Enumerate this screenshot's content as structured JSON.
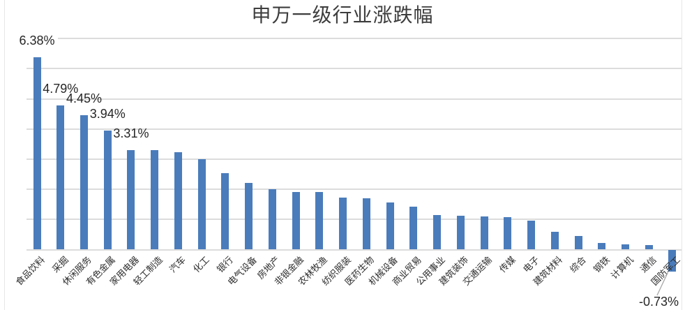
{
  "chart_data": {
    "type": "bar",
    "title": "申万一级行业涨跌幅",
    "unit": "%",
    "categories": [
      "食品饮料",
      "采掘",
      "休闲服务",
      "有色金属",
      "家用电器",
      "轻工制造",
      "汽车",
      "化工",
      "银行",
      "电气设备",
      "房地产",
      "非银金融",
      "农林牧渔",
      "纺织服装",
      "医药生物",
      "机械设备",
      "商业贸易",
      "公用事业",
      "建筑装饰",
      "交通运输",
      "传媒",
      "电子",
      "建筑材料",
      "综合",
      "钢铁",
      "计算机",
      "通信",
      "国防军工"
    ],
    "values": [
      6.38,
      4.79,
      4.45,
      3.94,
      3.31,
      3.29,
      3.23,
      3.0,
      2.53,
      2.21,
      2.0,
      1.91,
      1.9,
      1.72,
      1.7,
      1.56,
      1.43,
      1.15,
      1.13,
      1.11,
      1.07,
      0.95,
      0.58,
      0.46,
      0.21,
      0.18,
      0.15,
      -0.73
    ],
    "data_labels": [
      {
        "index": 0,
        "text": "6.38%"
      },
      {
        "index": 1,
        "text": "4.79%"
      },
      {
        "index": 2,
        "text": "4.45%"
      },
      {
        "index": 3,
        "text": "3.94%"
      },
      {
        "index": 4,
        "text": "3.31%"
      },
      {
        "index": 27,
        "text": "-0.73%",
        "leader_line": true
      }
    ],
    "ylim": [
      -1,
      7
    ],
    "gridlines": {
      "orientation": "horizontal",
      "step_pct": 1,
      "from_pct": 0,
      "to_pct": 7,
      "y_axis_labels_shown": false
    },
    "legend": "none",
    "xlabel_rotation_deg": 45,
    "colors": {
      "bar": "#4A7CBB",
      "gridline": "#DCDCDC",
      "title_text": "#3D3D3D",
      "data_label_text": "#262626",
      "axis_label_text": "#2E2E2E",
      "leader_line": "#A8A8A8",
      "background": "#FFFFFF"
    }
  }
}
